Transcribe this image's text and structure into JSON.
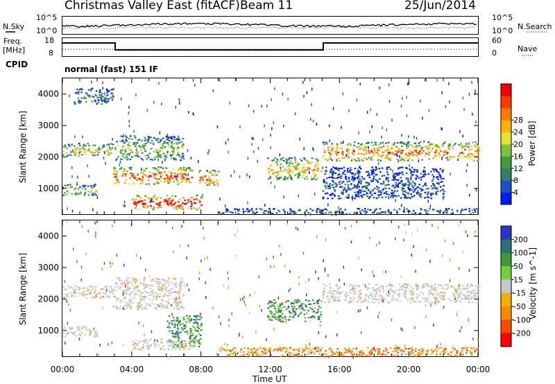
{
  "header": {
    "station": "Christmas Valley East (fitACF)",
    "beam": "Beam 11",
    "date": "25/Jun/2014"
  },
  "top_panels": {
    "nsky_label": "N.Sky",
    "nsearch_label": "N.Search",
    "nsky_ticks": [
      "10^5",
      "10^0"
    ],
    "nsearch_ticks": [
      "10^5",
      "10^0"
    ],
    "freq_label": "Freq.",
    "freq_unit": "[MHz]",
    "freq_ticks": [
      "18",
      "8"
    ],
    "nave_label": "Nave",
    "nave_ticks": [
      "60",
      "0"
    ],
    "cpid_label": "CPID",
    "cpid_value": "normal (fast) 151 IF"
  },
  "chart_data": [
    {
      "type": "heatmap",
      "panel": "power",
      "ylabel": "Slant Range [km]",
      "yticks": [
        1000,
        2000,
        3000,
        4000
      ],
      "ylim": [
        180,
        4500
      ],
      "xlim": [
        0,
        24
      ],
      "colorbar": {
        "label": "Power [dB]",
        "ticks": [
          "4",
          "8",
          "12",
          "16",
          "20",
          "24",
          "28"
        ],
        "colors": [
          "#0018ff",
          "#1e4fc8",
          "#2f7f6a",
          "#3e9a40",
          "#7dc33a",
          "#e6e030",
          "#ffb000",
          "#ff7a00",
          "#ff3a00",
          "#f00000"
        ]
      },
      "bands": [
        {
          "t0": 0.0,
          "t1": 2.9,
          "r0": 2050,
          "r1": 2450,
          "level": 0.55
        },
        {
          "t0": 0.0,
          "t1": 2.0,
          "r0": 800,
          "r1": 1150,
          "level": 0.5
        },
        {
          "t0": 0.6,
          "t1": 2.9,
          "r0": 3700,
          "r1": 4200,
          "level": 0.25
        },
        {
          "t0": 2.9,
          "t1": 7.5,
          "r0": 1150,
          "r1": 1700,
          "level": 0.8
        },
        {
          "t0": 3.0,
          "t1": 7.0,
          "r0": 1900,
          "r1": 2700,
          "level": 0.4
        },
        {
          "t0": 4.0,
          "t1": 8.0,
          "r0": 350,
          "r1": 800,
          "level": 0.95
        },
        {
          "t0": 7.8,
          "t1": 9.0,
          "r0": 1100,
          "r1": 1600,
          "level": 0.75
        },
        {
          "t0": 9.0,
          "t1": 24.0,
          "r0": 200,
          "r1": 380,
          "level": 0.2
        },
        {
          "t0": 11.8,
          "t1": 14.9,
          "r0": 1300,
          "r1": 2000,
          "level": 0.6
        },
        {
          "t0": 15.0,
          "t1": 24.0,
          "r0": 1900,
          "r1": 2500,
          "level": 0.7
        },
        {
          "t0": 15.0,
          "t1": 22.0,
          "r0": 700,
          "r1": 1700,
          "level": 0.15
        }
      ]
    },
    {
      "type": "heatmap",
      "panel": "velocity",
      "ylabel": "Slant Range [km]",
      "yticks": [
        1000,
        2000,
        3000,
        4000
      ],
      "ylim": [
        180,
        4500
      ],
      "xlim": [
        0,
        24
      ],
      "xticks": [
        "00:00",
        "04:00",
        "08:00",
        "12:00",
        "16:00",
        "20:00",
        "00:00"
      ],
      "xlabel": "Time UT",
      "colorbar": {
        "label": "Velocity [m s^-1]",
        "ticks": [
          "200",
          "100",
          "50",
          "15",
          "-15",
          "-50",
          "-100",
          "-200"
        ],
        "colors": [
          "#2a35c8",
          "#2a6f7a",
          "#3a9a3a",
          "#6fd03a",
          "#c8c8c8",
          "#f0b000",
          "#ff8a00",
          "#ff4a00",
          "#ff0000"
        ]
      },
      "bands": [
        {
          "t0": 0.0,
          "t1": 2.9,
          "r0": 2050,
          "r1": 2450,
          "cls": "ground"
        },
        {
          "t0": 0.0,
          "t1": 2.0,
          "r0": 800,
          "r1": 1150,
          "cls": "ground"
        },
        {
          "t0": 2.9,
          "t1": 7.0,
          "r0": 1700,
          "r1": 2700,
          "cls": "ground"
        },
        {
          "t0": 6.0,
          "t1": 8.0,
          "r0": 500,
          "r1": 1500,
          "cls": "positive"
        },
        {
          "t0": 4.0,
          "t1": 7.5,
          "r0": 400,
          "r1": 750,
          "cls": "ground"
        },
        {
          "t0": 9.0,
          "t1": 24.0,
          "r0": 200,
          "r1": 480,
          "cls": "negative"
        },
        {
          "t0": 11.8,
          "t1": 14.9,
          "r0": 1300,
          "r1": 2000,
          "cls": "positive"
        },
        {
          "t0": 15.0,
          "t1": 24.0,
          "r0": 1900,
          "r1": 2500,
          "cls": "ground"
        }
      ]
    }
  ]
}
